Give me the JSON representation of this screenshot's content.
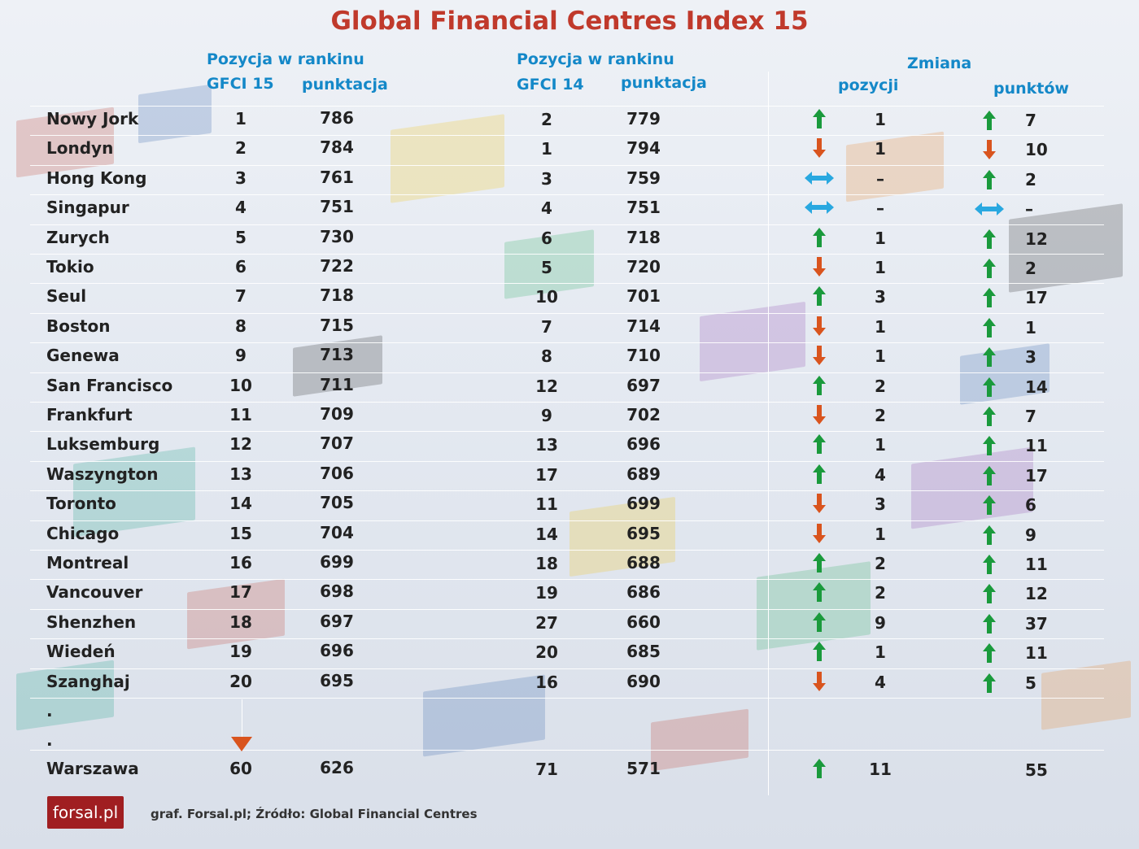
{
  "chart_data": {
    "type": "table",
    "title": "Global Financial Centres Index 15",
    "headers": {
      "group_gfci15": "Pozycja w rankinu",
      "gfci15_rank": "GFCI 15",
      "gfci15_score": "punktacja",
      "group_gfci14": "Pozycja w rankinu",
      "gfci14_rank": "GFCI 14",
      "gfci14_score": "punktacja",
      "group_change": "Zmiana",
      "change_pos": "pozycji",
      "change_pts": "punktów"
    },
    "rows": [
      {
        "city": "Nowy Jork",
        "rank15": "1",
        "score15": "786",
        "rank14": "2",
        "score14": "779",
        "pos_dir": "up",
        "pos_change": "1",
        "pts_dir": "up",
        "pts_change": "7"
      },
      {
        "city": "Londyn",
        "rank15": "2",
        "score15": "784",
        "rank14": "1",
        "score14": "794",
        "pos_dir": "down",
        "pos_change": "1",
        "pts_dir": "down",
        "pts_change": "10"
      },
      {
        "city": "Hong Kong",
        "rank15": "3",
        "score15": "761",
        "rank14": "3",
        "score14": "759",
        "pos_dir": "same",
        "pos_change": "–",
        "pts_dir": "up",
        "pts_change": "2"
      },
      {
        "city": "Singapur",
        "rank15": "4",
        "score15": "751",
        "rank14": "4",
        "score14": "751",
        "pos_dir": "same",
        "pos_change": "–",
        "pts_dir": "same",
        "pts_change": "–"
      },
      {
        "city": "Zurych",
        "rank15": "5",
        "score15": "730",
        "rank14": "6",
        "score14": "718",
        "pos_dir": "up",
        "pos_change": "1",
        "pts_dir": "up",
        "pts_change": "12"
      },
      {
        "city": "Tokio",
        "rank15": "6",
        "score15": "722",
        "rank14": "5",
        "score14": "720",
        "pos_dir": "down",
        "pos_change": "1",
        "pts_dir": "up",
        "pts_change": "2"
      },
      {
        "city": "Seul",
        "rank15": "7",
        "score15": "718",
        "rank14": "10",
        "score14": "701",
        "pos_dir": "up",
        "pos_change": "3",
        "pts_dir": "up",
        "pts_change": "17"
      },
      {
        "city": "Boston",
        "rank15": "8",
        "score15": "715",
        "rank14": "7",
        "score14": "714",
        "pos_dir": "down",
        "pos_change": "1",
        "pts_dir": "up",
        "pts_change": "1"
      },
      {
        "city": "Genewa",
        "rank15": "9",
        "score15": "713",
        "rank14": "8",
        "score14": "710",
        "pos_dir": "down",
        "pos_change": "1",
        "pts_dir": "up",
        "pts_change": "3"
      },
      {
        "city": "San Francisco",
        "rank15": "10",
        "score15": "711",
        "rank14": "12",
        "score14": "697",
        "pos_dir": "up",
        "pos_change": "2",
        "pts_dir": "up",
        "pts_change": "14"
      },
      {
        "city": "Frankfurt",
        "rank15": "11",
        "score15": "709",
        "rank14": "9",
        "score14": "702",
        "pos_dir": "down",
        "pos_change": "2",
        "pts_dir": "up",
        "pts_change": "7"
      },
      {
        "city": "Luksemburg",
        "rank15": "12",
        "score15": "707",
        "rank14": "13",
        "score14": "696",
        "pos_dir": "up",
        "pos_change": "1",
        "pts_dir": "up",
        "pts_change": "11"
      },
      {
        "city": "Waszyngton",
        "rank15": "13",
        "score15": "706",
        "rank14": "17",
        "score14": "689",
        "pos_dir": "up",
        "pos_change": "4",
        "pts_dir": "up",
        "pts_change": "17"
      },
      {
        "city": "Toronto",
        "rank15": "14",
        "score15": "705",
        "rank14": "11",
        "score14": "699",
        "pos_dir": "down",
        "pos_change": "3",
        "pts_dir": "up",
        "pts_change": "6"
      },
      {
        "city": "Chicago",
        "rank15": "15",
        "score15": "704",
        "rank14": "14",
        "score14": "695",
        "pos_dir": "down",
        "pos_change": "1",
        "pts_dir": "up",
        "pts_change": "9"
      },
      {
        "city": "Montreal",
        "rank15": "16",
        "score15": "699",
        "rank14": "18",
        "score14": "688",
        "pos_dir": "up",
        "pos_change": "2",
        "pts_dir": "up",
        "pts_change": "11"
      },
      {
        "city": "Vancouver",
        "rank15": "17",
        "score15": "698",
        "rank14": "19",
        "score14": "686",
        "pos_dir": "up",
        "pos_change": "2",
        "pts_dir": "up",
        "pts_change": "12"
      },
      {
        "city": "Shenzhen",
        "rank15": "18",
        "score15": "697",
        "rank14": "27",
        "score14": "660",
        "pos_dir": "up",
        "pos_change": "9",
        "pts_dir": "up",
        "pts_change": "37"
      },
      {
        "city": "Wiedeń",
        "rank15": "19",
        "score15": "696",
        "rank14": "20",
        "score14": "685",
        "pos_dir": "up",
        "pos_change": "1",
        "pts_dir": "up",
        "pts_change": "11"
      },
      {
        "city": "Szanghaj",
        "rank15": "20",
        "score15": "695",
        "rank14": "16",
        "score14": "690",
        "pos_dir": "down",
        "pos_change": "4",
        "pts_dir": "up",
        "pts_change": "5"
      }
    ],
    "ellipsis": ".",
    "final_row": {
      "city": "Warszawa",
      "rank15": "60",
      "score15": "626",
      "rank14": "71",
      "score14": "571",
      "pos_dir": "up",
      "pos_change": "11",
      "pts_dir": "none",
      "pts_change": "55"
    }
  },
  "colors": {
    "title": "#c0392b",
    "header": "#1488c8",
    "up": "#1a9a3c",
    "down": "#d9541e",
    "same": "#29a8e0"
  },
  "footer": {
    "logo": "forsal.pl",
    "source": "graf. Forsal.pl; Źródło: Global Financial Centres"
  }
}
